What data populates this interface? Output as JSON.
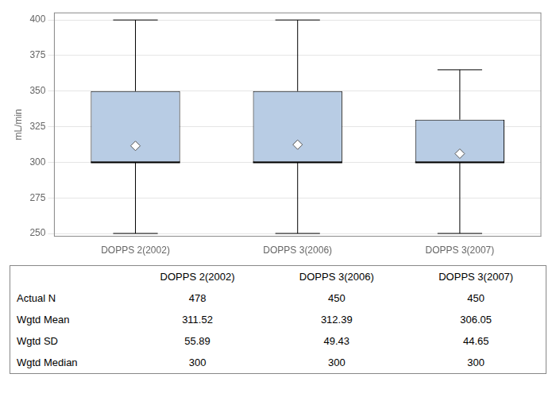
{
  "chart_data": {
    "type": "box",
    "categories": [
      "DOPPS 2(2002)",
      "DOPPS 3(2006)",
      "DOPPS 3(2007)"
    ],
    "boxes": [
      {
        "q1": 300,
        "median": 300,
        "q3": 350,
        "whislo": 250,
        "whishi": 400,
        "mean": 311.52
      },
      {
        "q1": 300,
        "median": 300,
        "q3": 350,
        "whislo": 250,
        "whishi": 400,
        "mean": 312.39
      },
      {
        "q1": 300,
        "median": 300,
        "q3": 330,
        "whislo": 250,
        "whishi": 365,
        "mean": 306.05
      }
    ],
    "ylabel": "mL/min",
    "ylim": [
      248,
      405
    ],
    "yticks": [
      250,
      275,
      300,
      325,
      350,
      375,
      400
    ],
    "color": "#b8cce4",
    "marker": "diamond",
    "grid": true,
    "table_labels": [
      "Actual N",
      "Wgtd Mean",
      "Wgtd SD",
      "Wgtd Median"
    ],
    "table_values": [
      [
        "478",
        "450",
        "450"
      ],
      [
        "311.52",
        "312.39",
        "306.05"
      ],
      [
        "55.89",
        "49.43",
        "44.65"
      ],
      [
        "300",
        "300",
        "300"
      ]
    ]
  }
}
